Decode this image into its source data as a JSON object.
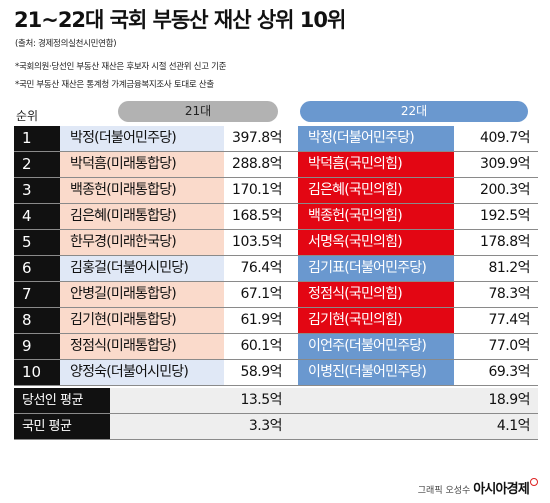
{
  "title": "21~22대 국회 부동산 재산 상위 10위",
  "source": "(출처: 경제정의실천시민연합)",
  "notes": [
    "*국회의원·당선인 부동산 재산은 후보자 시절 선관위 신고 기준",
    "*국민 부동산 재산은 통계청 가계금융복지조사 토대로 산출"
  ],
  "rank_header": "순위",
  "col21_header": "21대",
  "col22_header": "22대",
  "colors": {
    "democratic_blue": "#6a98cf",
    "ppp_red": "#e30613",
    "light_blue_cell": "#e0e8f6",
    "peach_cell": "#fadacb",
    "grey_pill": "#b2b2b2",
    "rank_black": "#111111"
  },
  "rows": [
    {
      "rank": "1",
      "name21": "박정(더불어민주당)",
      "val21": "397.8억",
      "name22": "박정(더불어민주당)",
      "val22": "409.7억",
      "party21": "democratic",
      "party22": "democratic"
    },
    {
      "rank": "2",
      "name21": "박덕흠(미래통합당)",
      "val21": "288.8억",
      "name22": "박덕흠(국민의힘)",
      "val22": "309.9억",
      "party21": "ppp",
      "party22": "ppp"
    },
    {
      "rank": "3",
      "name21": "백종헌(미래통합당)",
      "val21": "170.1억",
      "name22": "김은혜(국민의힘)",
      "val22": "200.3억",
      "party21": "ppp",
      "party22": "ppp"
    },
    {
      "rank": "4",
      "name21": "김은혜(미래통합당)",
      "val21": "168.5억",
      "name22": "백종헌(국민의힘)",
      "val22": "192.5억",
      "party21": "ppp",
      "party22": "ppp"
    },
    {
      "rank": "5",
      "name21": "한무경(미래한국당)",
      "val21": "103.5억",
      "name22": "서명옥(국민의힘)",
      "val22": "178.8억",
      "party21": "ppp",
      "party22": "ppp"
    },
    {
      "rank": "6",
      "name21": "김홍걸(더불어시민당)",
      "val21": "76.4억",
      "name22": "김기표(더불어민주당)",
      "val22": "81.2억",
      "party21": "democratic",
      "party22": "democratic"
    },
    {
      "rank": "7",
      "name21": "안병길(미래통합당)",
      "val21": "67.1억",
      "name22": "정점식(국민의힘)",
      "val22": "78.3억",
      "party21": "ppp",
      "party22": "ppp"
    },
    {
      "rank": "8",
      "name21": "김기현(미래통합당)",
      "val21": "61.9억",
      "name22": "김기현(국민의힘)",
      "val22": "77.4억",
      "party21": "ppp",
      "party22": "ppp"
    },
    {
      "rank": "9",
      "name21": "정점식(미래통합당)",
      "val21": "60.1억",
      "name22": "이언주(더불어민주당)",
      "val22": "77.0억",
      "party21": "ppp",
      "party22": "democratic"
    },
    {
      "rank": "10",
      "name21": "양정숙(더불어시민당)",
      "val21": "58.9억",
      "name22": "이병진(더불어민주당)",
      "val22": "69.3억",
      "party21": "democratic",
      "party22": "democratic"
    }
  ],
  "averages": [
    {
      "label": "당선인 평균",
      "val21": "13.5억",
      "val22": "18.9억"
    },
    {
      "label": "국민 평균",
      "val21": "3.3억",
      "val22": "4.1억"
    }
  ],
  "footer": {
    "credit": "그래픽 오성수",
    "brand": "아시아경제"
  },
  "chart_data": {
    "type": "table",
    "title": "21~22대 국회 부동산 재산 상위 10위",
    "columns": [
      "순위",
      "21대",
      "21대 재산",
      "22대",
      "22대 재산"
    ],
    "rows": [
      [
        "1",
        "박정(더불어민주당)",
        "397.8억",
        "박정(더불어민주당)",
        "409.7억"
      ],
      [
        "2",
        "박덕흠(미래통합당)",
        "288.8억",
        "박덕흠(국민의힘)",
        "309.9억"
      ],
      [
        "3",
        "백종헌(미래통합당)",
        "170.1억",
        "김은혜(국민의힘)",
        "200.3억"
      ],
      [
        "4",
        "김은혜(미래통합당)",
        "168.5억",
        "백종헌(국민의힘)",
        "192.5억"
      ],
      [
        "5",
        "한무경(미래한국당)",
        "103.5억",
        "서명옥(국민의힘)",
        "178.8억"
      ],
      [
        "6",
        "김홍걸(더불어시민당)",
        "76.4억",
        "김기표(더불어민주당)",
        "81.2억"
      ],
      [
        "7",
        "안병길(미래통합당)",
        "67.1억",
        "정점식(국민의힘)",
        "78.3억"
      ],
      [
        "8",
        "김기현(미래통합당)",
        "61.9억",
        "김기현(국민의힘)",
        "77.4억"
      ],
      [
        "9",
        "정점식(미래통합당)",
        "60.1억",
        "이언주(더불어민주당)",
        "77.0억"
      ],
      [
        "10",
        "양정숙(더불어시민당)",
        "58.9억",
        "이병진(더불어민주당)",
        "69.3억"
      ],
      [
        "당선인 평균",
        "",
        "13.5억",
        "",
        "18.9억"
      ],
      [
        "국민 평균",
        "",
        "3.3억",
        "",
        "4.1억"
      ]
    ]
  }
}
